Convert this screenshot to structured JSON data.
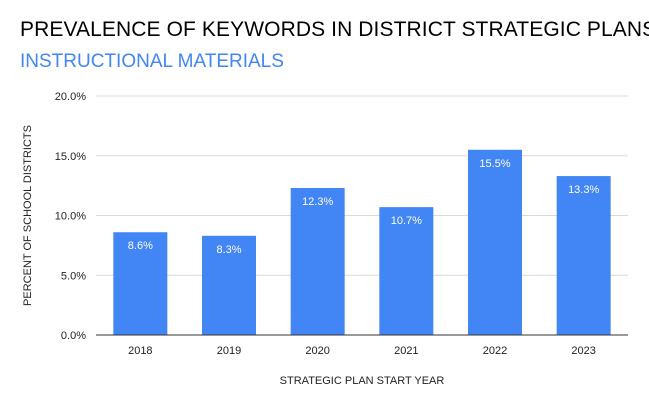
{
  "chart_data": {
    "type": "bar",
    "title": "PREVALENCE OF KEYWORDS IN DISTRICT STRATEGIC PLANS",
    "subtitle": "INSTRUCTIONAL MATERIALS",
    "xlabel": "STRATEGIC PLAN START YEAR",
    "ylabel": "PERCENT OF SCHOOL DISTRICTS",
    "categories": [
      "2018",
      "2019",
      "2020",
      "2021",
      "2022",
      "2023"
    ],
    "values": [
      8.6,
      8.3,
      12.3,
      10.7,
      15.5,
      13.3
    ],
    "data_labels": [
      "8.6%",
      "8.3%",
      "12.3%",
      "10.7%",
      "15.5%",
      "13.3%"
    ],
    "ylim": [
      0,
      20
    ],
    "y_ticks": [
      0,
      5,
      10,
      15,
      20
    ],
    "y_tick_labels": [
      "0.0%",
      "5.0%",
      "10.0%",
      "15.0%",
      "20.0%"
    ],
    "grid": true,
    "legend": "none",
    "bar_color": "#4285f4",
    "subtitle_color": "#4285f4",
    "grid_color": "#d9d9d9",
    "axis_color": "#333333"
  }
}
